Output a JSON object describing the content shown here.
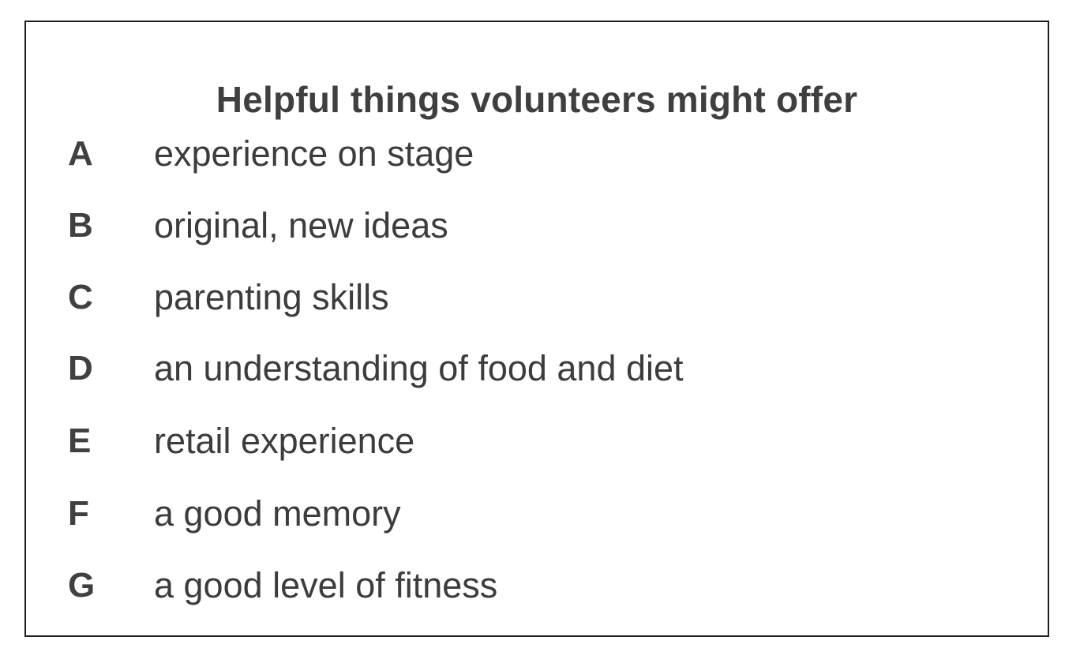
{
  "heading": "Helpful things volunteers might offer",
  "options": [
    {
      "letter": "A",
      "text": "experience on stage"
    },
    {
      "letter": "B",
      "text": "original, new ideas"
    },
    {
      "letter": "C",
      "text": "parenting skills"
    },
    {
      "letter": "D",
      "text": "an understanding of food and diet"
    },
    {
      "letter": "E",
      "text": "retail experience"
    },
    {
      "letter": "F",
      "text": "a good memory"
    },
    {
      "letter": "G",
      "text": "a good level of fitness"
    }
  ]
}
